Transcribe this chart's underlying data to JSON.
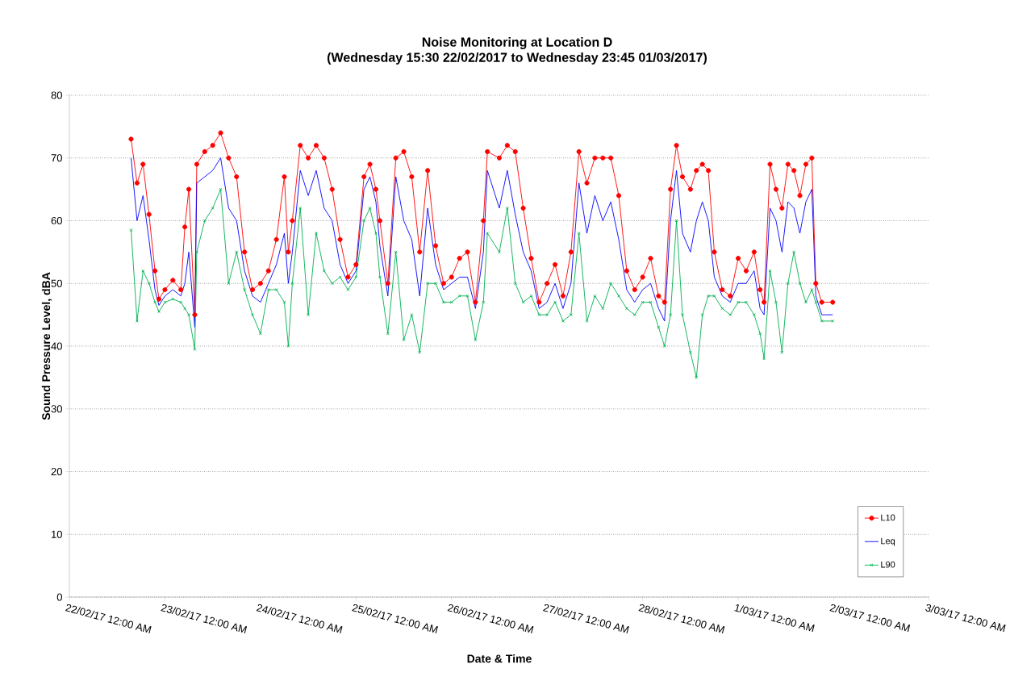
{
  "chart_data": {
    "type": "line",
    "title": "Noise Monitoring at Location D",
    "subtitle": "(Wednesday 15:30 22/02/2017 to Wednesday 23:45 01/03/2017)",
    "xlabel": "Date & Time",
    "ylabel": "Sound Pressure Level, dBA",
    "x": [
      "2017-02-22T15:30",
      "2017-02-22T17:00",
      "2017-02-22T18:30",
      "2017-02-22T20:00",
      "2017-02-22T21:30",
      "2017-02-22T22:30",
      "2017-02-23T00:00",
      "2017-02-23T02:00",
      "2017-02-23T04:00",
      "2017-02-23T05:00",
      "2017-02-23T06:00",
      "2017-02-23T07:30",
      "2017-02-23T08:00",
      "2017-02-23T10:00",
      "2017-02-23T12:00",
      "2017-02-23T14:00",
      "2017-02-23T16:00",
      "2017-02-23T18:00",
      "2017-02-23T20:00",
      "2017-02-23T22:00",
      "2017-02-24T00:00",
      "2017-02-24T02:00",
      "2017-02-24T04:00",
      "2017-02-24T06:00",
      "2017-02-24T07:00",
      "2017-02-24T08:00",
      "2017-02-24T10:00",
      "2017-02-24T12:00",
      "2017-02-24T14:00",
      "2017-02-24T16:00",
      "2017-02-24T18:00",
      "2017-02-24T20:00",
      "2017-02-24T22:00",
      "2017-02-25T00:00",
      "2017-02-25T02:00",
      "2017-02-25T03:30",
      "2017-02-25T05:00",
      "2017-02-25T06:00",
      "2017-02-25T08:00",
      "2017-02-25T10:00",
      "2017-02-25T12:00",
      "2017-02-25T14:00",
      "2017-02-25T16:00",
      "2017-02-25T18:00",
      "2017-02-25T20:00",
      "2017-02-25T22:00",
      "2017-02-26T00:00",
      "2017-02-26T02:00",
      "2017-02-26T04:00",
      "2017-02-26T06:00",
      "2017-02-26T08:00",
      "2017-02-26T09:00",
      "2017-02-26T12:00",
      "2017-02-26T14:00",
      "2017-02-26T16:00",
      "2017-02-26T18:00",
      "2017-02-26T20:00",
      "2017-02-26T22:00",
      "2017-02-27T00:00",
      "2017-02-27T02:00",
      "2017-02-27T04:00",
      "2017-02-27T06:00",
      "2017-02-27T08:00",
      "2017-02-27T10:00",
      "2017-02-27T12:00",
      "2017-02-27T14:00",
      "2017-02-27T16:00",
      "2017-02-27T18:00",
      "2017-02-27T20:00",
      "2017-02-27T22:00",
      "2017-02-28T00:00",
      "2017-02-28T02:00",
      "2017-02-28T04:00",
      "2017-02-28T05:30",
      "2017-02-28T07:00",
      "2017-02-28T08:30",
      "2017-02-28T10:00",
      "2017-02-28T12:00",
      "2017-02-28T13:30",
      "2017-02-28T15:00",
      "2017-02-28T16:30",
      "2017-02-28T18:00",
      "2017-02-28T20:00",
      "2017-02-28T22:00",
      "2017-03-01T00:00",
      "2017-03-01T02:00",
      "2017-03-01T04:00",
      "2017-03-01T05:30",
      "2017-03-01T06:30",
      "2017-03-01T08:00",
      "2017-03-01T09:30",
      "2017-03-01T11:00",
      "2017-03-01T12:30",
      "2017-03-01T14:00",
      "2017-03-01T15:30",
      "2017-03-01T17:00",
      "2017-03-01T18:30",
      "2017-03-01T19:30",
      "2017-03-01T21:00",
      "2017-03-01T23:45"
    ],
    "series": [
      {
        "name": "L10",
        "color": "#ff0000",
        "marker": "circle",
        "values": [
          73,
          66,
          69,
          61,
          52,
          47.5,
          49,
          50.5,
          49,
          59,
          65,
          45,
          69,
          71,
          72,
          74,
          70,
          67,
          55,
          49,
          50,
          52,
          57,
          67,
          55,
          60,
          72,
          70,
          72,
          70,
          65,
          57,
          51,
          53,
          67,
          69,
          65,
          60,
          50,
          70,
          71,
          67,
          55,
          68,
          56,
          50,
          51,
          54,
          55,
          47,
          60,
          71,
          70,
          72,
          71,
          62,
          54,
          47,
          50,
          53,
          48,
          55,
          71,
          66,
          70,
          70,
          70,
          64,
          52,
          49,
          51,
          54,
          48,
          47,
          65,
          72,
          67,
          65,
          68,
          69,
          68,
          55,
          49,
          48,
          54,
          52,
          55,
          49,
          47,
          69,
          65,
          62,
          69,
          68,
          64,
          69,
          70,
          50,
          47,
          47
        ]
      },
      {
        "name": "Leq",
        "color": "#0000ff",
        "marker": "none",
        "values": [
          70,
          60,
          64,
          57,
          49,
          46.5,
          48,
          49,
          48,
          50,
          55,
          43,
          66,
          67,
          68,
          70,
          62,
          60,
          52,
          48,
          47,
          50,
          53,
          58,
          50,
          55,
          68,
          64,
          68,
          62,
          60,
          53,
          50,
          52,
          65,
          67,
          63,
          56,
          48,
          67,
          60,
          57,
          48,
          62,
          53,
          49,
          50,
          51,
          51,
          46,
          55,
          68,
          62,
          68,
          61,
          55,
          52,
          46,
          47,
          50,
          46,
          50,
          66,
          58,
          64,
          60,
          63,
          57,
          49,
          47,
          49,
          50,
          46,
          44,
          60,
          68,
          58,
          55,
          60,
          63,
          60,
          51,
          48,
          47,
          50,
          50,
          52,
          46,
          45,
          62,
          60,
          55,
          63,
          62,
          58,
          63,
          65,
          48,
          45,
          45
        ]
      },
      {
        "name": "L90",
        "color": "#00b050",
        "marker": "cross",
        "values": [
          58.5,
          44,
          52,
          50,
          47,
          45.5,
          47,
          47.5,
          47,
          46,
          45,
          39.5,
          55,
          60,
          62,
          65,
          50,
          55,
          49,
          45,
          42,
          49,
          49,
          47,
          40,
          50,
          62,
          45,
          58,
          52,
          50,
          51,
          49,
          51,
          60,
          62,
          58,
          51,
          42,
          55,
          41,
          45,
          39,
          50,
          50,
          47,
          47,
          48,
          48,
          41,
          47,
          58,
          55,
          62,
          50,
          47,
          48,
          45,
          45,
          47,
          44,
          45,
          58,
          44,
          48,
          46,
          50,
          48,
          46,
          45,
          47,
          47,
          43,
          40,
          45,
          60,
          45,
          39,
          35,
          45,
          48,
          48,
          46,
          45,
          47,
          47,
          45,
          42,
          38,
          52,
          47,
          39,
          50,
          55,
          50,
          47,
          49,
          47,
          44,
          44
        ]
      }
    ],
    "xlim": [
      "2017-02-22T00:00",
      "2017-03-03T00:00"
    ],
    "xticks": [
      {
        "value": "2017-02-22T00:00",
        "label": "22/02/17 12:00 AM"
      },
      {
        "value": "2017-02-23T00:00",
        "label": "23/02/17 12:00 AM"
      },
      {
        "value": "2017-02-24T00:00",
        "label": "24/02/17 12:00 AM"
      },
      {
        "value": "2017-02-25T00:00",
        "label": "25/02/17 12:00 AM"
      },
      {
        "value": "2017-02-26T00:00",
        "label": "26/02/17 12:00 AM"
      },
      {
        "value": "2017-02-27T00:00",
        "label": "27/02/17 12:00 AM"
      },
      {
        "value": "2017-02-28T00:00",
        "label": "28/02/17 12:00 AM"
      },
      {
        "value": "2017-03-01T00:00",
        "label": "1/03/17 12:00 AM"
      },
      {
        "value": "2017-03-02T00:00",
        "label": "2/03/17 12:00 AM"
      },
      {
        "value": "2017-03-03T00:00",
        "label": "3/03/17 12:00 AM"
      }
    ],
    "ylim": [
      0,
      80
    ],
    "yticks": [
      0,
      10,
      20,
      30,
      40,
      50,
      60,
      70,
      80
    ],
    "grid": "y",
    "legend": "bottom right",
    "line_style": "solid"
  }
}
